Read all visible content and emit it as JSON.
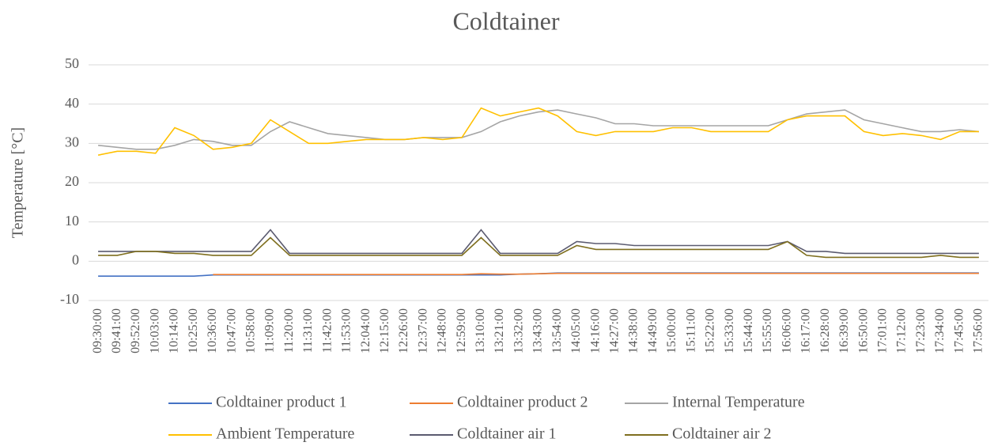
{
  "chart_data": {
    "type": "line",
    "title": "Coldtainer",
    "y_label": "Temperature [°C]",
    "categories": [
      "09:30:00",
      "09:41:00",
      "09:52:00",
      "10:03:00",
      "10:14:00",
      "10:25:00",
      "10:36:00",
      "10:47:00",
      "10:58:00",
      "11:09:00",
      "11:20:00",
      "11:31:00",
      "11:42:00",
      "11:53:00",
      "12:04:00",
      "12:15:00",
      "12:26:00",
      "12:37:00",
      "12:48:00",
      "12:59:00",
      "13:10:00",
      "13:21:00",
      "13:32:00",
      "13:43:00",
      "13:54:00",
      "14:05:00",
      "14:16:00",
      "14:27:00",
      "14:38:00",
      "14:49:00",
      "15:00:00",
      "15:11:00",
      "15:22:00",
      "15:33:00",
      "15:44:00",
      "15:55:00",
      "16:06:00",
      "16:17:00",
      "16:28:00",
      "16:39:00",
      "16:50:00",
      "17:01:00",
      "17:12:00",
      "17:23:00",
      "17:34:00",
      "17:45:00",
      "17:56:00"
    ],
    "series": [
      {
        "name": "Coldtainer product 1",
        "color": "#4472c4",
        "values": [
          -3.8,
          -3.8,
          -3.8,
          -3.8,
          -3.8,
          -3.8,
          -3.5,
          -3.5,
          -3.5,
          -3.5,
          -3.5,
          -3.5,
          -3.5,
          -3.5,
          -3.5,
          -3.5,
          -3.5,
          -3.5,
          -3.5,
          -3.5,
          -3.5,
          -3.5,
          -3.3,
          -3.2,
          -3,
          -3,
          -3,
          -3,
          -3,
          -3,
          -3,
          -3,
          -3,
          -3,
          -3,
          -3,
          -3,
          -3,
          -3,
          -3,
          -3,
          -3,
          -3,
          -3,
          -3,
          -3,
          -3
        ]
      },
      {
        "name": "Coldtainer product 2",
        "color": "#ed7d31",
        "values": [
          null,
          null,
          null,
          null,
          null,
          null,
          -3.4,
          -3.4,
          -3.4,
          -3.4,
          -3.4,
          -3.4,
          -3.4,
          -3.4,
          -3.4,
          -3.4,
          -3.4,
          -3.4,
          -3.4,
          -3.4,
          -3.2,
          -3.3,
          -3.3,
          -3.2,
          -3.1,
          -3.1,
          -3.1,
          -3.1,
          -3.1,
          -3.1,
          -3.1,
          -3.1,
          -3.1,
          -3.1,
          -3.1,
          -3.1,
          -3.1,
          -3.1,
          -3.1,
          -3.1,
          -3.1,
          -3.1,
          -3.1,
          -3.1,
          -3.1,
          -3.1,
          -3.1
        ]
      },
      {
        "name": "Internal Temperature",
        "color": "#a5a5a5",
        "values": [
          29.5,
          29,
          28.5,
          28.5,
          29.5,
          31,
          30.5,
          29.5,
          29.5,
          33,
          35.5,
          34,
          32.5,
          32,
          31.5,
          31,
          31,
          31.5,
          31.5,
          31.5,
          33,
          35.5,
          37,
          38,
          38.5,
          37.5,
          36.5,
          35,
          35,
          34.5,
          34.5,
          34.5,
          34.5,
          34.5,
          34.5,
          34.5,
          36,
          37.5,
          38,
          38.5,
          36,
          35,
          34,
          33,
          33,
          33.5,
          33
        ]
      },
      {
        "name": "Ambient Temperature",
        "color": "#ffc000",
        "values": [
          27,
          28,
          28,
          27.5,
          34,
          32,
          28.5,
          29,
          30,
          36,
          33,
          30,
          30,
          30.5,
          31,
          31,
          31,
          31.5,
          31,
          31.5,
          39,
          37,
          38,
          39,
          37,
          33,
          32,
          33,
          33,
          33,
          34,
          34,
          33,
          33,
          33,
          33,
          36,
          37,
          37,
          37,
          33,
          32,
          32.5,
          32,
          31,
          33,
          33
        ]
      },
      {
        "name": "Coldtainer air 1",
        "color": "#5b5b70",
        "values": [
          2.5,
          2.5,
          2.5,
          2.5,
          2.5,
          2.5,
          2.5,
          2.5,
          2.5,
          8,
          2,
          2,
          2,
          2,
          2,
          2,
          2,
          2,
          2,
          2,
          8,
          2,
          2,
          2,
          2,
          5,
          4.5,
          4.5,
          4,
          4,
          4,
          4,
          4,
          4,
          4,
          4,
          5,
          2.5,
          2.5,
          2,
          2,
          2,
          2,
          2,
          2,
          2,
          2
        ]
      },
      {
        "name": "Coldtainer air 2",
        "color": "#7f6f1f",
        "values": [
          1.5,
          1.5,
          2.5,
          2.5,
          2,
          2,
          1.5,
          1.5,
          1.5,
          6,
          1.5,
          1.5,
          1.5,
          1.5,
          1.5,
          1.5,
          1.5,
          1.5,
          1.5,
          1.5,
          6,
          1.5,
          1.5,
          1.5,
          1.5,
          4,
          3,
          3,
          3,
          3,
          3,
          3,
          3,
          3,
          3,
          3,
          5,
          1.5,
          1,
          1,
          1,
          1,
          1,
          1,
          1.5,
          1,
          1
        ]
      }
    ],
    "ylim": [
      -10,
      50
    ],
    "yticks": [
      -10,
      0,
      10,
      20,
      30,
      40,
      50
    ],
    "grid": true,
    "legend": "bottom"
  }
}
